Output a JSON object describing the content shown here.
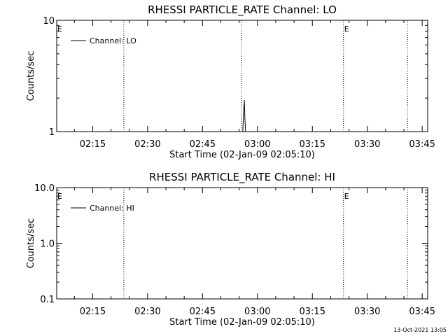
{
  "chart_data": [
    {
      "type": "line",
      "title": "RHESSI PARTICLE_RATE Channel: LO",
      "xlabel": "Start Time (02-Jan-09 02:05:10)",
      "ylabel": "Counts/sec",
      "y_scale": "log",
      "ylim": [
        1,
        10
      ],
      "y_ticks": [
        "1",
        "10"
      ],
      "xlim": [
        "02:05:10",
        "03:46:30"
      ],
      "x_ticks": [
        "02:15",
        "02:30",
        "02:45",
        "03:00",
        "03:15",
        "03:30",
        "03:45"
      ],
      "legend": {
        "position": "top-left",
        "entries": [
          "Channel: LO"
        ]
      },
      "series": [
        {
          "name": "Channel: LO",
          "x": [
            "02:56:00",
            "02:56:10",
            "02:56:25",
            "02:56:35",
            "02:56:45"
          ],
          "y": [
            1,
            1.4,
            1.9,
            1.3,
            1
          ]
        }
      ],
      "markers": [
        {
          "label": "E",
          "time": "02:05:10",
          "style": "none"
        },
        {
          "label": "",
          "time": "02:23:30",
          "style": "dotted"
        },
        {
          "label": "",
          "time": "02:55:40",
          "style": "dotted"
        },
        {
          "label": "E",
          "time": "03:23:30",
          "style": "dotted"
        },
        {
          "label": "",
          "time": "03:41:00",
          "style": "dotted"
        }
      ],
      "grid": false
    },
    {
      "type": "line",
      "title": "RHESSI PARTICLE_RATE Channel: HI",
      "xlabel": "Start Time (02-Jan-09 02:05:10)",
      "ylabel": "Counts/sec",
      "y_scale": "log",
      "ylim": [
        0.1,
        10.0
      ],
      "y_ticks": [
        "0.1",
        "1.0",
        "10.0"
      ],
      "xlim": [
        "02:05:10",
        "03:46:30"
      ],
      "x_ticks": [
        "02:15",
        "02:30",
        "02:45",
        "03:00",
        "03:15",
        "03:30",
        "03:45"
      ],
      "legend": {
        "position": "top-left",
        "entries": [
          "Channel: HI"
        ]
      },
      "series": [
        {
          "name": "Channel: HI",
          "x": [],
          "y": []
        }
      ],
      "markers": [
        {
          "label": "E",
          "time": "02:05:10",
          "style": "none"
        },
        {
          "label": "",
          "time": "02:23:30",
          "style": "dotted"
        },
        {
          "label": "E",
          "time": "03:23:30",
          "style": "dotted"
        },
        {
          "label": "",
          "time": "03:41:00",
          "style": "dotted"
        }
      ],
      "grid": false
    }
  ],
  "footer": {
    "timestamp": "13-Oct-2021 13:05"
  }
}
